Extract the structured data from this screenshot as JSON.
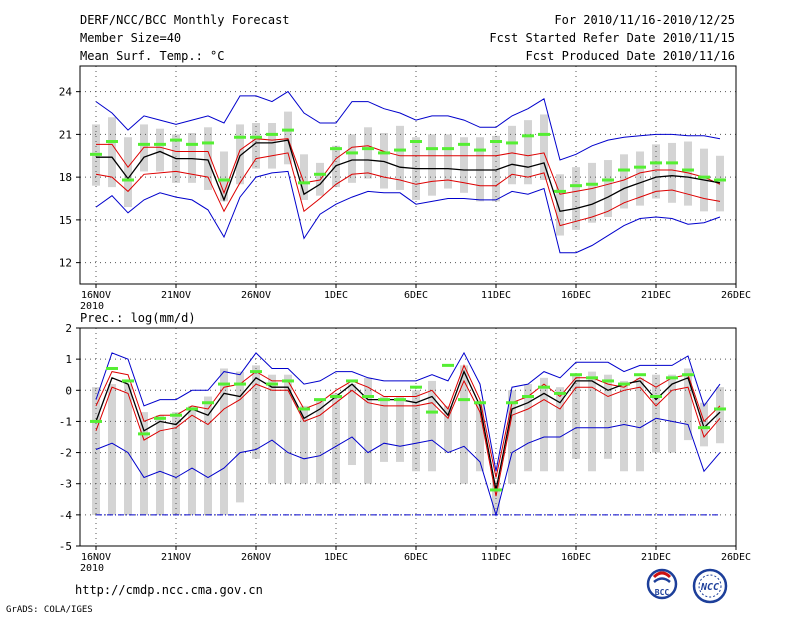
{
  "header": {
    "title": "DERF/NCC/BCC Monthly Forecast",
    "member_size": "Member Size=40",
    "variable": "Mean Surf. Temp.: °C",
    "period": "For 2010/11/16-2010/12/25",
    "started": "Fcst Started Refer Date 2010/11/15",
    "produced": "Fcst Produced Date 2010/11/16"
  },
  "footer": {
    "url": "http://cmdp.ncc.cma.gov.cn",
    "grads": "GrADS: COLA/IGES",
    "logo_bcc": "BCC",
    "logo_ncc": "NCC"
  },
  "colors": {
    "max_min": "#0000cc",
    "spread": "#dd0000",
    "mean": "#000000",
    "box": "#d4d4d4",
    "marker": "#55ee33"
  },
  "chart_data": [
    {
      "type": "line",
      "title": "Mean Surf. Temp.: °C",
      "x": [
        1,
        2,
        3,
        4,
        5,
        6,
        7,
        8,
        9,
        10,
        11,
        12,
        13,
        14,
        15,
        16,
        17,
        18,
        19,
        20,
        21,
        22,
        23,
        24,
        25,
        26,
        27,
        28,
        29,
        30,
        31,
        32,
        33,
        34,
        35,
        36,
        37,
        38,
        39,
        40
      ],
      "x_ticks": [
        {
          "day": 1,
          "label": "16NOV",
          "sublabel": "2010"
        },
        {
          "day": 6,
          "label": "21NOV"
        },
        {
          "day": 11,
          "label": "26NOV"
        },
        {
          "day": 16,
          "label": "1DEC"
        },
        {
          "day": 21,
          "label": "6DEC"
        },
        {
          "day": 26,
          "label": "11DEC"
        },
        {
          "day": 31,
          "label": "16DEC"
        },
        {
          "day": 36,
          "label": "21DEC"
        },
        {
          "day": 41,
          "label": "26DEC"
        }
      ],
      "y_ticks": [
        12,
        15,
        18,
        21,
        24
      ],
      "ylim": [
        10.5,
        25.8
      ],
      "series": [
        {
          "name": "max",
          "values": [
            23.3,
            22.5,
            21.3,
            22.3,
            22.0,
            21.7,
            22.0,
            22.3,
            21.8,
            23.7,
            23.7,
            23.3,
            24.0,
            22.5,
            21.8,
            21.8,
            23.3,
            23.3,
            22.8,
            22.5,
            22.0,
            22.3,
            22.3,
            22.0,
            21.5,
            21.5,
            22.3,
            22.8,
            23.5,
            19.2,
            19.6,
            20.2,
            20.6,
            20.8,
            20.9,
            21.0,
            21.0,
            20.9,
            20.9,
            20.7
          ]
        },
        {
          "name": "upper",
          "values": [
            20.3,
            20.3,
            18.7,
            20.1,
            20.1,
            19.8,
            19.8,
            19.8,
            16.9,
            19.9,
            20.7,
            20.6,
            20.7,
            17.6,
            17.8,
            19.3,
            20.1,
            20.2,
            19.8,
            19.5,
            19.5,
            19.5,
            19.5,
            19.5,
            19.5,
            19.5,
            19.7,
            19.5,
            19.7,
            16.8,
            17.0,
            17.2,
            17.5,
            17.8,
            18.3,
            18.5,
            18.5,
            18.3,
            18.0,
            17.5
          ]
        },
        {
          "name": "mean",
          "values": [
            19.4,
            19.4,
            17.9,
            19.4,
            19.8,
            19.3,
            19.3,
            19.2,
            16.4,
            19.5,
            20.4,
            20.4,
            20.6,
            16.8,
            17.5,
            18.8,
            19.2,
            19.2,
            19.1,
            18.7,
            18.6,
            18.6,
            18.6,
            18.5,
            18.5,
            18.5,
            18.9,
            18.7,
            19.0,
            15.6,
            15.8,
            16.1,
            16.6,
            17.2,
            17.6,
            18.0,
            18.1,
            18.0,
            17.8,
            17.6
          ]
        },
        {
          "name": "lower",
          "values": [
            18.2,
            18.0,
            17.0,
            18.2,
            18.3,
            18.4,
            18.2,
            18.0,
            15.6,
            17.6,
            19.3,
            19.5,
            19.7,
            15.6,
            16.5,
            17.5,
            18.2,
            18.3,
            18.0,
            17.8,
            17.5,
            17.7,
            17.8,
            17.6,
            17.4,
            17.4,
            18.2,
            18.0,
            18.3,
            14.6,
            14.9,
            15.2,
            15.6,
            16.2,
            16.6,
            17.0,
            17.1,
            16.8,
            16.5,
            16.3
          ]
        },
        {
          "name": "min",
          "values": [
            15.9,
            16.7,
            15.5,
            16.4,
            16.9,
            16.6,
            16.4,
            15.7,
            13.8,
            16.6,
            18.0,
            18.3,
            18.4,
            13.7,
            15.4,
            16.1,
            16.6,
            17.0,
            16.9,
            16.9,
            16.1,
            16.3,
            16.5,
            16.5,
            16.4,
            16.4,
            17.0,
            16.8,
            17.2,
            12.7,
            12.7,
            13.2,
            13.9,
            14.6,
            15.1,
            15.2,
            15.1,
            14.7,
            14.8,
            15.2
          ]
        },
        {
          "name": "box_high",
          "values": [
            21.7,
            22.2,
            20.8,
            21.7,
            21.4,
            21.0,
            21.1,
            21.5,
            19.8,
            21.7,
            21.8,
            21.8,
            22.6,
            19.6,
            19.0,
            20.2,
            21.0,
            21.5,
            21.1,
            21.6,
            20.8,
            21.0,
            21.0,
            20.8,
            20.8,
            20.9,
            21.6,
            22.0,
            22.4,
            18.2,
            18.7,
            19.0,
            19.2,
            19.6,
            19.8,
            20.3,
            20.4,
            20.5,
            20.0,
            19.5
          ]
        },
        {
          "name": "box_low",
          "values": [
            17.4,
            17.3,
            15.9,
            18.4,
            18.4,
            17.6,
            17.6,
            17.1,
            16.3,
            17.5,
            18.6,
            18.6,
            18.9,
            16.4,
            16.7,
            17.3,
            17.6,
            17.9,
            17.2,
            17.1,
            16.4,
            16.7,
            17.2,
            16.9,
            16.3,
            16.3,
            17.5,
            17.5,
            17.8,
            13.9,
            14.3,
            14.8,
            15.2,
            15.8,
            16.0,
            16.5,
            16.2,
            16.0,
            15.6,
            15.6
          ]
        },
        {
          "name": "marker",
          "values": [
            19.6,
            20.5,
            17.8,
            20.3,
            20.3,
            20.6,
            20.3,
            20.4,
            17.8,
            20.8,
            20.8,
            21.0,
            21.3,
            17.6,
            18.2,
            20.0,
            19.7,
            20.0,
            19.7,
            19.9,
            20.5,
            20.0,
            20.0,
            20.3,
            19.9,
            20.5,
            20.4,
            20.9,
            21.0,
            17.0,
            17.4,
            17.5,
            17.8,
            18.5,
            18.7,
            19.0,
            19.0,
            18.5,
            18.0,
            17.8
          ]
        }
      ]
    },
    {
      "type": "line",
      "title": "Prec.: log(mm/d)",
      "x": [
        1,
        2,
        3,
        4,
        5,
        6,
        7,
        8,
        9,
        10,
        11,
        12,
        13,
        14,
        15,
        16,
        17,
        18,
        19,
        20,
        21,
        22,
        23,
        24,
        25,
        26,
        27,
        28,
        29,
        30,
        31,
        32,
        33,
        34,
        35,
        36,
        37,
        38,
        39,
        40
      ],
      "x_ticks": [
        {
          "day": 1,
          "label": "16NOV",
          "sublabel": "2010"
        },
        {
          "day": 6,
          "label": "21NOV"
        },
        {
          "day": 11,
          "label": "26NOV"
        },
        {
          "day": 16,
          "label": "1DEC"
        },
        {
          "day": 21,
          "label": "6DEC"
        },
        {
          "day": 26,
          "label": "11DEC"
        },
        {
          "day": 31,
          "label": "16DEC"
        },
        {
          "day": 36,
          "label": "21DEC"
        },
        {
          "day": 41,
          "label": "26DEC"
        }
      ],
      "y_ticks": [
        -5,
        -4,
        -3,
        -2,
        -1,
        0,
        1,
        2
      ],
      "ylim": [
        -5,
        2
      ],
      "series": [
        {
          "name": "max",
          "values": [
            -0.3,
            1.2,
            1.0,
            -0.5,
            -0.3,
            -0.3,
            0.0,
            0.0,
            0.6,
            0.5,
            1.2,
            0.7,
            0.7,
            0.2,
            0.3,
            0.6,
            0.6,
            0.4,
            0.3,
            0.3,
            0.3,
            0.5,
            0.3,
            1.2,
            0.2,
            -2.6,
            0.1,
            0.2,
            0.6,
            0.4,
            0.9,
            0.9,
            0.9,
            0.6,
            0.8,
            0.8,
            0.8,
            1.1,
            -0.5,
            0.2
          ]
        },
        {
          "name": "upper",
          "values": [
            -0.5,
            0.6,
            0.5,
            -1.0,
            -0.8,
            -0.8,
            -0.5,
            -0.6,
            0.1,
            0.2,
            0.6,
            0.3,
            0.3,
            -0.6,
            -0.4,
            0.0,
            0.3,
            0.1,
            -0.2,
            -0.2,
            -0.2,
            0.0,
            -0.6,
            0.8,
            -0.3,
            -2.8,
            -0.4,
            -0.2,
            0.2,
            -0.2,
            0.4,
            0.4,
            0.2,
            0.1,
            0.4,
            0.1,
            0.4,
            0.5,
            -1.0,
            -0.5
          ]
        },
        {
          "name": "mean",
          "values": [
            -1.0,
            0.4,
            0.2,
            -1.3,
            -1.0,
            -1.1,
            -0.6,
            -0.8,
            -0.1,
            -0.2,
            0.4,
            0.1,
            0.1,
            -0.9,
            -0.6,
            -0.2,
            0.2,
            -0.3,
            -0.3,
            -0.3,
            -0.4,
            -0.2,
            -0.8,
            0.6,
            -0.5,
            -3.2,
            -0.6,
            -0.4,
            -0.1,
            -0.4,
            0.3,
            0.3,
            0.0,
            0.2,
            0.3,
            -0.3,
            0.2,
            0.4,
            -1.2,
            -0.7
          ]
        },
        {
          "name": "lower",
          "values": [
            -1.3,
            0.1,
            -0.1,
            -1.6,
            -1.3,
            -1.2,
            -0.8,
            -1.1,
            -0.6,
            -0.3,
            0.2,
            0.0,
            0.0,
            -1.0,
            -0.8,
            -0.4,
            0.0,
            -0.4,
            -0.5,
            -0.5,
            -0.5,
            -0.4,
            -0.9,
            0.3,
            -0.7,
            -3.4,
            -0.8,
            -0.6,
            -0.3,
            -0.6,
            0.1,
            0.1,
            -0.2,
            0.0,
            0.1,
            -0.5,
            0.0,
            0.1,
            -1.5,
            -0.9
          ]
        },
        {
          "name": "min",
          "values": [
            -1.9,
            -1.7,
            -2.0,
            -2.8,
            -2.6,
            -2.8,
            -2.5,
            -2.8,
            -2.5,
            -2.0,
            -1.9,
            -1.6,
            -2.0,
            -2.2,
            -2.1,
            -1.8,
            -1.5,
            -2.0,
            -1.7,
            -1.8,
            -1.7,
            -1.6,
            -2.0,
            -1.8,
            -2.3,
            -4.0,
            -2.0,
            -1.7,
            -1.5,
            -1.5,
            -1.2,
            -1.2,
            -1.2,
            -1.1,
            -1.2,
            -0.9,
            -1.0,
            -1.1,
            -2.6,
            -2.0
          ]
        },
        {
          "name": "box_high",
          "values": [
            0.1,
            0.2,
            0.2,
            -0.7,
            -0.8,
            -0.7,
            -0.5,
            -0.2,
            0.7,
            0.6,
            0.8,
            0.5,
            0.5,
            -0.5,
            -0.3,
            -0.1,
            0.2,
            0.4,
            -0.2,
            -0.2,
            0.0,
            0.3,
            -0.5,
            0.8,
            -0.4,
            -2.9,
            0.0,
            0.2,
            0.4,
            0.1,
            0.5,
            0.6,
            0.5,
            0.3,
            0.4,
            0.5,
            0.5,
            0.7,
            -0.4,
            0.1
          ]
        },
        {
          "name": "box_low",
          "values": [
            -4.0,
            -4.0,
            -4.0,
            -4.0,
            -4.0,
            -4.0,
            -4.0,
            -4.0,
            -4.0,
            -3.6,
            -2.2,
            -3.0,
            -3.0,
            -3.0,
            -3.0,
            -3.0,
            -2.4,
            -3.0,
            -2.3,
            -2.3,
            -2.6,
            -2.6,
            -2.0,
            -3.0,
            -2.6,
            -4.0,
            -3.0,
            -2.6,
            -2.6,
            -2.6,
            -2.2,
            -2.6,
            -2.2,
            -2.6,
            -2.6,
            -2.0,
            -2.0,
            -1.6,
            -1.8,
            -1.7
          ]
        },
        {
          "name": "marker",
          "values": [
            -1.0,
            0.7,
            0.3,
            -1.4,
            -0.9,
            -0.8,
            -0.6,
            -0.4,
            0.2,
            0.2,
            0.6,
            0.2,
            0.3,
            -0.6,
            -0.3,
            -0.2,
            0.3,
            -0.2,
            -0.3,
            -0.3,
            0.1,
            -0.7,
            0.8,
            -0.3,
            -0.4,
            -3.2,
            -0.4,
            -0.2,
            0.1,
            -0.1,
            0.5,
            0.4,
            0.3,
            0.2,
            0.5,
            -0.2,
            0.4,
            0.5,
            -1.2,
            -0.6
          ]
        }
      ]
    }
  ]
}
